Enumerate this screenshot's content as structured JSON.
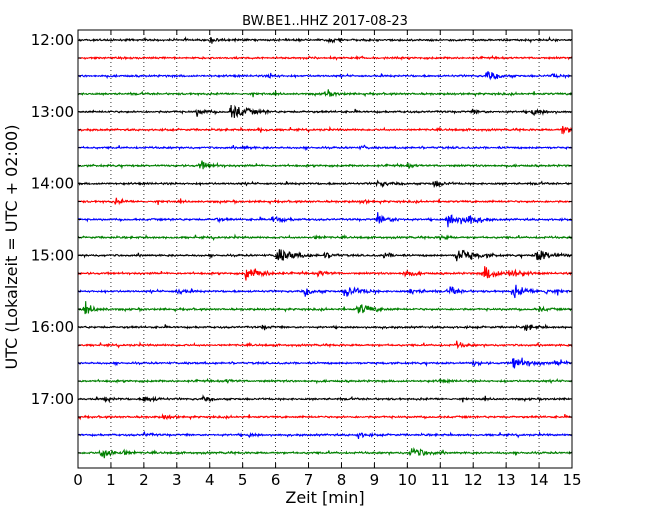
{
  "chart_data": {
    "type": "line",
    "title": "BW.BE1..HHZ 2017-08-23",
    "xlabel": "Zeit  [min]",
    "ylabel": "UTC (Lokalzeit = UTC + 02:00)",
    "xlim": [
      0,
      15
    ],
    "x_ticks": [
      "0",
      "1",
      "2",
      "3",
      "4",
      "5",
      "6",
      "7",
      "8",
      "9",
      "10",
      "11",
      "12",
      "13",
      "14",
      "15"
    ],
    "y_tick_labels": [
      "12:00",
      "13:00",
      "14:00",
      "15:00",
      "16:00",
      "17:00"
    ],
    "trace_interval_min": 15,
    "grid": true,
    "trace_colors": [
      "#000000",
      "#ff0000",
      "#0000ff",
      "#008000"
    ],
    "series": [
      {
        "start": "12:00",
        "events": [
          [
            4.0,
            0.35
          ],
          [
            7.6,
            0.3
          ]
        ]
      },
      {
        "start": "12:15",
        "events": []
      },
      {
        "start": "12:30",
        "events": [
          [
            12.4,
            0.6
          ],
          [
            5.8,
            0.3
          ],
          [
            14.4,
            0.3
          ]
        ]
      },
      {
        "start": "12:45",
        "events": [
          [
            7.5,
            0.45
          ]
        ]
      },
      {
        "start": "13:00",
        "events": [
          [
            4.65,
            1.0
          ],
          [
            3.6,
            0.45
          ],
          [
            13.8,
            0.5
          ],
          [
            12.0,
            0.3
          ]
        ]
      },
      {
        "start": "13:15",
        "events": [
          [
            14.7,
            0.55
          ],
          [
            5.5,
            0.25
          ]
        ]
      },
      {
        "start": "13:30",
        "events": [
          [
            5.0,
            0.25
          ],
          [
            8.6,
            0.25
          ]
        ]
      },
      {
        "start": "13:45",
        "events": [
          [
            3.7,
            0.55
          ],
          [
            10.0,
            0.25
          ]
        ]
      },
      {
        "start": "14:00",
        "events": [
          [
            10.8,
            0.45
          ],
          [
            9.1,
            0.4
          ]
        ]
      },
      {
        "start": "14:15",
        "events": [
          [
            1.15,
            0.3
          ],
          [
            8.6,
            0.25
          ]
        ]
      },
      {
        "start": "14:30",
        "events": [
          [
            11.2,
            0.95
          ],
          [
            9.1,
            0.65
          ],
          [
            5.9,
            0.55
          ],
          [
            11.8,
            0.6
          ],
          [
            4.2,
            0.25
          ]
        ]
      },
      {
        "start": "14:45",
        "events": [
          [
            11.0,
            0.3
          ],
          [
            7.2,
            0.25
          ]
        ]
      },
      {
        "start": "15:00",
        "events": [
          [
            6.0,
            1.0
          ],
          [
            11.5,
            1.0
          ],
          [
            13.9,
            0.9
          ],
          [
            7.5,
            0.4
          ],
          [
            9.3,
            0.35
          ]
        ]
      },
      {
        "start": "15:15",
        "events": [
          [
            12.3,
            0.95
          ],
          [
            5.1,
            0.9
          ],
          [
            13.1,
            0.6
          ],
          [
            9.9,
            0.5
          ],
          [
            7.3,
            0.4
          ]
        ]
      },
      {
        "start": "15:30",
        "events": [
          [
            8.1,
            0.85
          ],
          [
            13.2,
            0.75
          ],
          [
            10.1,
            0.45
          ],
          [
            11.3,
            0.5
          ],
          [
            3.0,
            0.4
          ],
          [
            6.9,
            0.45
          ],
          [
            14.2,
            0.4
          ]
        ]
      },
      {
        "start": "15:45",
        "events": [
          [
            8.5,
            0.8
          ],
          [
            0.2,
            0.55
          ],
          [
            14.0,
            0.3
          ]
        ]
      },
      {
        "start": "16:00",
        "events": [
          [
            13.6,
            0.45
          ],
          [
            5.6,
            0.25
          ]
        ]
      },
      {
        "start": "16:15",
        "events": [
          [
            11.5,
            0.35
          ]
        ]
      },
      {
        "start": "16:30",
        "events": [
          [
            13.2,
            0.85
          ],
          [
            12.0,
            0.3
          ],
          [
            14.5,
            0.4
          ]
        ]
      },
      {
        "start": "16:45",
        "events": [
          [
            4.5,
            0.25
          ],
          [
            11.0,
            0.25
          ]
        ]
      },
      {
        "start": "17:00",
        "events": [
          [
            2.0,
            0.5
          ],
          [
            0.8,
            0.3
          ],
          [
            3.8,
            0.25
          ]
        ]
      },
      {
        "start": "17:15",
        "events": [
          [
            2.6,
            0.35
          ]
        ]
      },
      {
        "start": "17:30",
        "events": [
          [
            8.5,
            0.35
          ],
          [
            5.2,
            0.25
          ],
          [
            2.0,
            0.25
          ]
        ]
      },
      {
        "start": "17:45",
        "events": [
          [
            0.7,
            0.75
          ],
          [
            10.1,
            0.75
          ],
          [
            1.4,
            0.25
          ]
        ]
      }
    ]
  }
}
